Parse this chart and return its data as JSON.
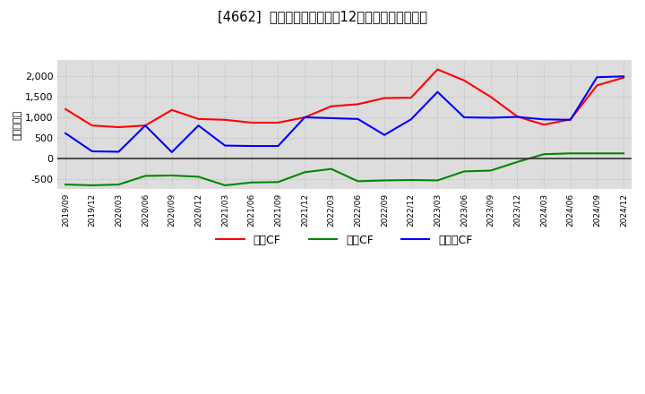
{
  "title": "[4662]  キャッシュフローの12か月移動合計の推移",
  "ylabel": "（百万円）",
  "background_color": "#ffffff",
  "plot_bg_color": "#dddddd",
  "grid_color": "#bbbbbb",
  "x_labels": [
    "2019/09",
    "2019/12",
    "2020/03",
    "2020/06",
    "2020/09",
    "2020/12",
    "2021/03",
    "2021/06",
    "2021/09",
    "2021/12",
    "2022/03",
    "2022/06",
    "2022/09",
    "2022/12",
    "2023/03",
    "2023/06",
    "2023/09",
    "2023/12",
    "2024/03",
    "2024/06",
    "2024/09",
    "2024/12"
  ],
  "operating_cf": [
    1200,
    800,
    760,
    800,
    1180,
    960,
    940,
    870,
    870,
    1000,
    1270,
    1320,
    1470,
    1480,
    2170,
    1900,
    1500,
    1020,
    820,
    950,
    1780,
    1970
  ],
  "investing_cf": [
    -640,
    -660,
    -640,
    -430,
    -420,
    -450,
    -660,
    -590,
    -580,
    -340,
    -260,
    -560,
    -540,
    -530,
    -540,
    -320,
    -300,
    -90,
    100,
    120,
    120,
    120
  ],
  "free_cf": [
    610,
    170,
    160,
    800,
    150,
    800,
    310,
    300,
    300,
    1000,
    980,
    960,
    570,
    950,
    1620,
    1000,
    990,
    1010,
    950,
    940,
    1980,
    2000
  ],
  "operating_color": "#ff0000",
  "investing_color": "#008800",
  "free_color": "#0000ff",
  "ylim": [
    -750,
    2400
  ],
  "yticks": [
    -500,
    0,
    500,
    1000,
    1500,
    2000
  ],
  "legend_labels": [
    "営業CF",
    "投資CF",
    "フリーCF"
  ]
}
